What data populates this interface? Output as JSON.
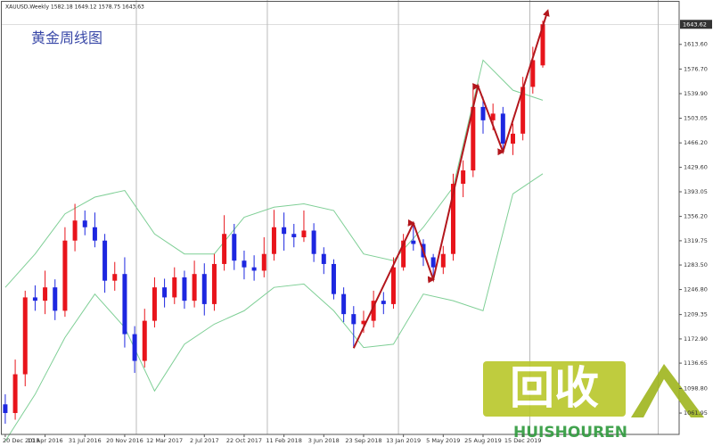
{
  "chart_data": {
    "type": "candlestick",
    "header": "XAUUSD,Weekly  1582.18 1649.12 1578.75 1643.63",
    "title": "黄金周线图",
    "open": [
      1075,
      1062,
      1120,
      1235,
      1230,
      1250,
      1215,
      1320,
      1350,
      1340,
      1320,
      1260,
      1270,
      1180,
      1140,
      1200,
      1250,
      1235,
      1265,
      1230,
      1270,
      1225,
      1285,
      1330,
      1290,
      1280,
      1275,
      1300,
      1340,
      1330,
      1325,
      1335,
      1300,
      1285,
      1240,
      1210,
      1195,
      1200,
      1230,
      1225,
      1280,
      1320,
      1315,
      1295,
      1280,
      1300,
      1405,
      1425,
      1520,
      1500,
      1510,
      1465,
      1480,
      1550,
      1582.18
    ],
    "high": [
      1090,
      1142,
      1245,
      1253,
      1275,
      1262,
      1340,
      1375,
      1365,
      1362,
      1330,
      1288,
      1295,
      1192,
      1218,
      1265,
      1263,
      1280,
      1275,
      1290,
      1286,
      1300,
      1358,
      1345,
      1305,
      1298,
      1325,
      1366,
      1362,
      1345,
      1365,
      1346,
      1310,
      1292,
      1250,
      1222,
      1215,
      1245,
      1243,
      1295,
      1330,
      1348,
      1322,
      1300,
      1312,
      1420,
      1440,
      1555,
      1535,
      1525,
      1520,
      1495,
      1565,
      1610,
      1649.12
    ],
    "low": [
      1046,
      1052,
      1102,
      1215,
      1210,
      1201,
      1206,
      1304,
      1328,
      1310,
      1242,
      1245,
      1160,
      1122,
      1130,
      1190,
      1220,
      1225,
      1218,
      1220,
      1208,
      1215,
      1275,
      1276,
      1262,
      1260,
      1265,
      1290,
      1305,
      1310,
      1318,
      1288,
      1270,
      1232,
      1198,
      1160,
      1182,
      1190,
      1210,
      1218,
      1275,
      1305,
      1282,
      1266,
      1270,
      1290,
      1385,
      1415,
      1480,
      1485,
      1455,
      1448,
      1470,
      1540,
      1578.75
    ],
    "close": [
      1062,
      1120,
      1235,
      1230,
      1250,
      1215,
      1320,
      1350,
      1340,
      1320,
      1260,
      1270,
      1180,
      1140,
      1200,
      1250,
      1235,
      1265,
      1230,
      1270,
      1225,
      1285,
      1330,
      1290,
      1280,
      1275,
      1300,
      1340,
      1330,
      1325,
      1335,
      1300,
      1285,
      1240,
      1210,
      1195,
      1200,
      1230,
      1225,
      1280,
      1320,
      1315,
      1295,
      1280,
      1300,
      1405,
      1425,
      1520,
      1500,
      1510,
      1465,
      1480,
      1550,
      1590,
      1643.63
    ],
    "up_color": "#e8141b",
    "down_color": "#1d27e0",
    "bands": {
      "color": "#7fcf96",
      "x": [
        0,
        3,
        6,
        9,
        12,
        15,
        18,
        21,
        24,
        27,
        30,
        33,
        36,
        39,
        42,
        45,
        48,
        51,
        54
      ],
      "upper": [
        1250,
        1300,
        1360,
        1385,
        1395,
        1330,
        1300,
        1300,
        1355,
        1370,
        1375,
        1365,
        1300,
        1290,
        1340,
        1400,
        1590,
        1545,
        1530
      ],
      "lower": [
        1020,
        1090,
        1175,
        1240,
        1190,
        1095,
        1165,
        1195,
        1215,
        1250,
        1255,
        1215,
        1160,
        1165,
        1240,
        1230,
        1215,
        1390,
        1420
      ]
    },
    "arrows": {
      "color": "#b3161c",
      "x": [
        35,
        41,
        43,
        47.5,
        50,
        54.5
      ],
      "y": [
        1159,
        1346,
        1262,
        1551,
        1453,
        1664
      ]
    },
    "separators": [
      13.17,
      26.33,
      39.5,
      52.7,
      65.6
    ],
    "current_price": 1643.62,
    "xlim": [
      -0.35,
      67.7
    ],
    "ylim": [
      1030,
      1680
    ],
    "xticks": [
      {
        "value": 0,
        "label": "20 Dec 2015"
      },
      {
        "value": 4,
        "label": "10 Apr 2016"
      },
      {
        "value": 8,
        "label": "31 Jul 2016"
      },
      {
        "value": 12,
        "label": "20 Nov 2016"
      },
      {
        "value": 16,
        "label": "12 Mar 2017"
      },
      {
        "value": 20,
        "label": "2 Jul 2017"
      },
      {
        "value": 24,
        "label": "22 Oct 2017"
      },
      {
        "value": 28,
        "label": "11 Feb 2018"
      },
      {
        "value": 32,
        "label": "3 Jun 2018"
      },
      {
        "value": 36,
        "label": "23 Sep 2018"
      },
      {
        "value": 40,
        "label": "13 Jan 2019"
      },
      {
        "value": 44,
        "label": "5 May 2019"
      },
      {
        "value": 48,
        "label": "25 Aug 2019"
      },
      {
        "value": 52,
        "label": "15 Dec 2019"
      }
    ],
    "yticks": [
      1061.95,
      {
        "value": 1098.8,
        "label": "1098.80"
      },
      1136.65,
      {
        "value": 1172.9,
        "label": "1172.90"
      },
      1209.35,
      {
        "value": 1246.8,
        "label": "1246.80"
      },
      {
        "value": 1283.5,
        "label": "1283.50"
      },
      1319.75,
      {
        "value": 1356.2,
        "label": "1356.20"
      },
      1393.05,
      {
        "value": 1429.6,
        "label": "1429.60"
      },
      {
        "value": 1466.2,
        "label": "1466.20"
      },
      1503.05,
      {
        "value": 1539.9,
        "label": "1539.90"
      },
      {
        "value": 1576.7,
        "label": "1576.70"
      },
      {
        "value": 1613.6,
        "label": "1613.60"
      }
    ]
  },
  "watermark": {
    "logo": "回收",
    "brand": "HUISHOUREN"
  }
}
